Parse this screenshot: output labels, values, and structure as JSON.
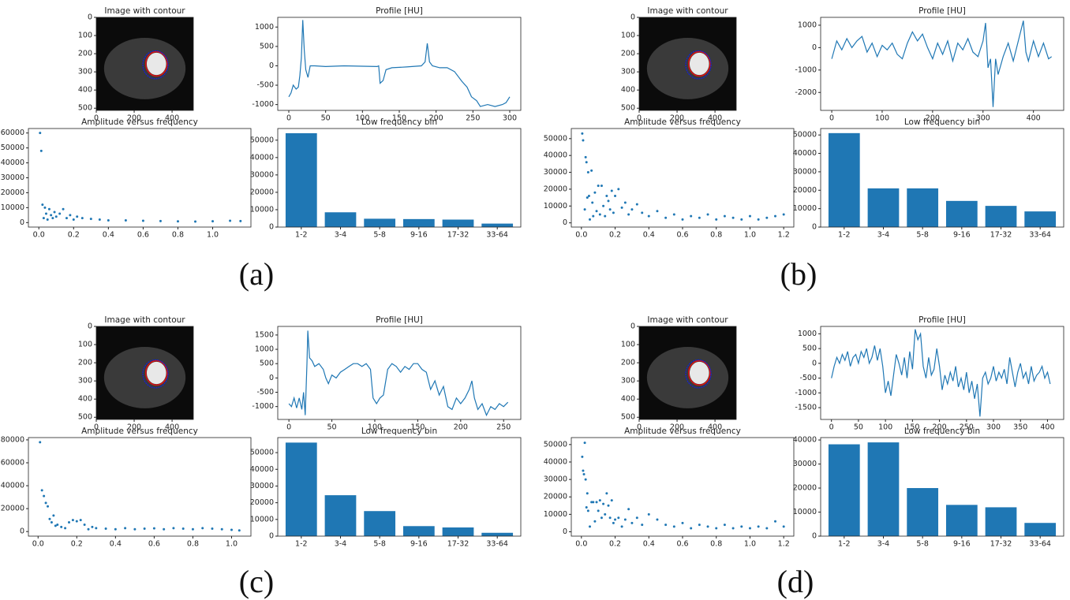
{
  "panel_labels": [
    "(a)",
    "(b)",
    "(c)",
    "(d)"
  ],
  "chart_data": [
    {
      "type": "image",
      "title": "Image with contour",
      "xlim": [
        0,
        512
      ],
      "ylim": [
        512,
        0
      ],
      "xticks": [
        0,
        200,
        400
      ],
      "yticks": [
        0,
        100,
        200,
        300,
        400,
        500
      ]
    },
    {
      "type": "line",
      "title": "Profile [HU]",
      "color": "#1f77b4",
      "xlim": [
        -15,
        315
      ],
      "ylim": [
        -1150,
        1250
      ],
      "xticks": [
        0,
        50,
        100,
        150,
        200,
        250,
        300
      ],
      "yticks": [
        -1000,
        -500,
        0,
        500,
        1000
      ],
      "x": [
        0,
        3,
        6,
        10,
        13,
        15,
        17,
        19,
        21,
        23,
        26,
        29,
        35,
        50,
        75,
        100,
        120,
        122,
        124,
        128,
        132,
        140,
        160,
        180,
        185,
        188,
        191,
        195,
        205,
        215,
        225,
        235,
        242,
        248,
        255,
        260,
        270,
        280,
        290,
        295,
        300
      ],
      "values": [
        -800,
        -700,
        -500,
        -600,
        -550,
        -250,
        200,
        1180,
        400,
        -100,
        -300,
        0,
        0,
        -20,
        0,
        -10,
        -20,
        0,
        -450,
        -380,
        -100,
        -50,
        -30,
        0,
        100,
        580,
        100,
        0,
        -50,
        -50,
        -150,
        -400,
        -550,
        -800,
        -900,
        -1050,
        -1000,
        -1050,
        -1000,
        -950,
        -800
      ]
    },
    {
      "type": "scatter",
      "title": "Amplitude versus frequency",
      "color": "#1f77b4",
      "xlim": [
        -0.06,
        1.22
      ],
      "ylim": [
        -3000,
        63000
      ],
      "xticks": [
        {
          "value": 0,
          "label": "0.0"
        },
        0.2,
        0.4,
        0.6,
        0.8,
        {
          "value": 1,
          "label": "1.0"
        }
      ],
      "yticks": [
        0,
        10000,
        20000,
        30000,
        40000,
        50000,
        60000
      ],
      "x": [
        0.007,
        0.014,
        0.021,
        0.028,
        0.035,
        0.042,
        0.05,
        0.06,
        0.07,
        0.08,
        0.09,
        0.1,
        0.12,
        0.14,
        0.16,
        0.18,
        0.2,
        0.22,
        0.25,
        0.3,
        0.35,
        0.4,
        0.5,
        0.6,
        0.7,
        0.8,
        0.9,
        1.0,
        1.1,
        1.16
      ],
      "values": [
        60000,
        48000,
        12000,
        3000,
        10000,
        6000,
        2000,
        9000,
        5000,
        3000,
        7000,
        4000,
        6000,
        9000,
        3000,
        5000,
        2000,
        4000,
        3000,
        2500,
        2000,
        1500,
        1500,
        1200,
        1000,
        800,
        700,
        900,
        1200,
        1000
      ]
    },
    {
      "type": "bar",
      "title": "Low frequency bin",
      "color": "#1f77b4",
      "categories": [
        "1-2",
        "3-4",
        "5-8",
        "9-16",
        "17-32",
        "33-64"
      ],
      "values": [
        54000,
        8500,
        4800,
        4600,
        4300,
        2000
      ],
      "ylim": [
        0,
        56700
      ],
      "yticks": [
        0,
        10000,
        20000,
        30000,
        40000,
        50000
      ]
    },
    {
      "type": "image",
      "title": "Image with contour",
      "xlim": [
        0,
        512
      ],
      "ylim": [
        512,
        0
      ],
      "xticks": [
        0,
        200,
        400
      ],
      "yticks": [
        0,
        100,
        200,
        300,
        400,
        500
      ]
    },
    {
      "type": "line",
      "title": "Profile [HU]",
      "color": "#1f77b4",
      "xlim": [
        -22,
        460
      ],
      "ylim": [
        -2800,
        1350
      ],
      "xticks": [
        0,
        100,
        200,
        300,
        400
      ],
      "yticks": [
        -2000,
        -1000,
        0,
        1000
      ],
      "x": [
        0,
        10,
        20,
        30,
        40,
        50,
        60,
        70,
        80,
        90,
        100,
        110,
        120,
        130,
        140,
        150,
        160,
        170,
        180,
        190,
        200,
        210,
        220,
        230,
        240,
        250,
        260,
        270,
        280,
        290,
        300,
        305,
        310,
        315,
        320,
        325,
        330,
        340,
        350,
        360,
        370,
        380,
        385,
        390,
        400,
        410,
        420,
        430,
        436
      ],
      "values": [
        -500,
        300,
        -100,
        400,
        0,
        300,
        500,
        -200,
        200,
        -400,
        100,
        -100,
        200,
        -300,
        -500,
        200,
        700,
        300,
        600,
        0,
        -500,
        200,
        -300,
        300,
        -600,
        200,
        -100,
        400,
        -200,
        -400,
        300,
        1100,
        -900,
        -500,
        -2650,
        -500,
        -1200,
        -400,
        200,
        -600,
        300,
        1200,
        -200,
        -600,
        300,
        -400,
        200,
        -500,
        -400
      ]
    },
    {
      "type": "scatter",
      "title": "Amplitude versus frequency",
      "color": "#1f77b4",
      "xlim": [
        -0.06,
        1.26
      ],
      "ylim": [
        -2500,
        56000
      ],
      "xticks": [
        {
          "value": 0,
          "label": "0.0"
        },
        0.2,
        0.4,
        0.6,
        0.8,
        {
          "value": 1,
          "label": "1.0"
        },
        1.2
      ],
      "yticks": [
        0,
        10000,
        20000,
        30000,
        40000,
        50000
      ],
      "x": [
        0.005,
        0.01,
        0.02,
        0.025,
        0.03,
        0.035,
        0.04,
        0.045,
        0.05,
        0.06,
        0.065,
        0.07,
        0.08,
        0.09,
        0.1,
        0.11,
        0.12,
        0.13,
        0.14,
        0.15,
        0.16,
        0.17,
        0.18,
        0.19,
        0.2,
        0.22,
        0.24,
        0.26,
        0.28,
        0.3,
        0.33,
        0.36,
        0.4,
        0.45,
        0.5,
        0.55,
        0.6,
        0.65,
        0.7,
        0.75,
        0.8,
        0.85,
        0.9,
        0.95,
        1.0,
        1.05,
        1.1,
        1.15,
        1.2
      ],
      "values": [
        53000,
        49000,
        8000,
        39000,
        36000,
        15000,
        30000,
        16000,
        2000,
        31000,
        12000,
        4000,
        18000,
        7000,
        22000,
        5000,
        22000,
        10000,
        4000,
        16000,
        13000,
        8000,
        19000,
        6000,
        16000,
        20000,
        9000,
        12000,
        5000,
        8000,
        11000,
        6000,
        4000,
        7000,
        3000,
        5000,
        2000,
        4000,
        3000,
        5000,
        2000,
        4000,
        3000,
        2000,
        4000,
        2000,
        3000,
        4000,
        5000
      ]
    },
    {
      "type": "bar",
      "title": "Low frequency bin",
      "color": "#1f77b4",
      "categories": [
        "1-2",
        "3-4",
        "5-8",
        "9-16",
        "17-32",
        "33-64"
      ],
      "values": [
        51000,
        21000,
        21000,
        14200,
        11500,
        8500
      ],
      "ylim": [
        0,
        53500
      ],
      "yticks": [
        0,
        10000,
        20000,
        30000,
        40000,
        50000
      ]
    },
    {
      "type": "image",
      "title": "Image with contour",
      "xlim": [
        0,
        512
      ],
      "ylim": [
        512,
        0
      ],
      "xticks": [
        0,
        200,
        400
      ],
      "yticks": [
        0,
        100,
        200,
        300,
        400,
        500
      ]
    },
    {
      "type": "line",
      "title": "Profile [HU]",
      "color": "#1f77b4",
      "xlim": [
        -13,
        270
      ],
      "ylim": [
        -1450,
        1800
      ],
      "xticks": [
        0,
        50,
        100,
        150,
        200,
        250
      ],
      "yticks": [
        -1000,
        -500,
        0,
        500,
        1000,
        1500
      ],
      "x": [
        0,
        3,
        6,
        9,
        12,
        15,
        17,
        19,
        21,
        22,
        24,
        27,
        30,
        35,
        40,
        43,
        46,
        50,
        55,
        60,
        65,
        70,
        75,
        80,
        85,
        90,
        95,
        98,
        102,
        106,
        110,
        115,
        120,
        125,
        130,
        135,
        140,
        145,
        150,
        155,
        160,
        165,
        170,
        175,
        180,
        185,
        190,
        195,
        200,
        205,
        210,
        213,
        216,
        220,
        225,
        230,
        235,
        240,
        245,
        250,
        255
      ],
      "values": [
        -900,
        -1000,
        -700,
        -1050,
        -700,
        -1100,
        -500,
        -1300,
        500,
        1650,
        700,
        600,
        400,
        500,
        300,
        0,
        -200,
        100,
        0,
        200,
        300,
        400,
        500,
        500,
        400,
        500,
        300,
        -700,
        -900,
        -700,
        -600,
        300,
        500,
        400,
        200,
        400,
        300,
        500,
        500,
        300,
        200,
        -400,
        -100,
        -600,
        -300,
        -1000,
        -1100,
        -700,
        -900,
        -700,
        -400,
        -100,
        -700,
        -1100,
        -900,
        -1300,
        -1000,
        -1100,
        -900,
        -1000,
        -850
      ]
    },
    {
      "type": "scatter",
      "title": "Amplitude versus frequency",
      "color": "#1f77b4",
      "xlim": [
        -0.05,
        1.1
      ],
      "ylim": [
        -4000,
        82000
      ],
      "xticks": [
        {
          "value": 0,
          "label": "0.0"
        },
        0.2,
        0.4,
        0.6,
        0.8,
        {
          "value": 1,
          "label": "1.0"
        }
      ],
      "yticks": [
        0,
        20000,
        40000,
        60000,
        80000
      ],
      "x": [
        0.01,
        0.02,
        0.03,
        0.04,
        0.05,
        0.06,
        0.07,
        0.08,
        0.09,
        0.1,
        0.12,
        0.14,
        0.16,
        0.18,
        0.2,
        0.22,
        0.24,
        0.26,
        0.28,
        0.3,
        0.35,
        0.4,
        0.45,
        0.5,
        0.55,
        0.6,
        0.65,
        0.7,
        0.75,
        0.8,
        0.85,
        0.9,
        0.95,
        1.0,
        1.04
      ],
      "values": [
        78000,
        36000,
        31000,
        25000,
        22000,
        11000,
        8000,
        14000,
        5000,
        6000,
        4000,
        3000,
        8000,
        10000,
        9000,
        10000,
        6000,
        2000,
        4000,
        3000,
        2500,
        2000,
        3000,
        2000,
        2500,
        2800,
        2000,
        3000,
        2500,
        2000,
        3000,
        2500,
        2000,
        1500,
        1000
      ]
    },
    {
      "type": "bar",
      "title": "Low frequency bin",
      "color": "#1f77b4",
      "categories": [
        "1-2",
        "3-4",
        "5-8",
        "9-16",
        "17-32",
        "33-64"
      ],
      "values": [
        56000,
        24500,
        15000,
        6000,
        5200,
        2000
      ],
      "ylim": [
        0,
        59000
      ],
      "yticks": [
        0,
        10000,
        20000,
        30000,
        40000,
        50000
      ]
    },
    {
      "type": "image",
      "title": "Image with contour",
      "xlim": [
        0,
        512
      ],
      "ylim": [
        512,
        0
      ],
      "xticks": [
        0,
        200,
        400
      ],
      "yticks": [
        0,
        100,
        200,
        300,
        400,
        500
      ]
    },
    {
      "type": "line",
      "title": "Profile [HU]",
      "color": "#1f77b4",
      "xlim": [
        -20,
        430
      ],
      "ylim": [
        -1900,
        1250
      ],
      "xticks": [
        0,
        50,
        100,
        150,
        200,
        250,
        300,
        350,
        400
      ],
      "yticks": [
        -1500,
        -1000,
        -500,
        0,
        500,
        1000
      ],
      "x": [
        0,
        5,
        10,
        15,
        20,
        25,
        30,
        35,
        40,
        45,
        50,
        55,
        60,
        65,
        70,
        75,
        80,
        85,
        90,
        95,
        100,
        105,
        110,
        115,
        120,
        125,
        130,
        135,
        140,
        145,
        150,
        155,
        160,
        165,
        170,
        175,
        180,
        185,
        190,
        195,
        200,
        205,
        210,
        215,
        220,
        225,
        230,
        235,
        240,
        245,
        250,
        255,
        260,
        265,
        270,
        275,
        280,
        285,
        290,
        295,
        300,
        305,
        310,
        315,
        320,
        325,
        330,
        335,
        340,
        345,
        350,
        355,
        360,
        365,
        370,
        375,
        380,
        385,
        390,
        395,
        400,
        405
      ],
      "values": [
        -500,
        -100,
        200,
        0,
        300,
        100,
        400,
        -100,
        200,
        300,
        0,
        400,
        200,
        500,
        0,
        200,
        600,
        100,
        500,
        -100,
        -1000,
        -600,
        -1100,
        -400,
        300,
        0,
        -400,
        200,
        -500,
        400,
        -200,
        1150,
        800,
        1000,
        -100,
        -500,
        200,
        -400,
        -200,
        500,
        -100,
        -900,
        -400,
        -700,
        -300,
        -600,
        -100,
        -800,
        -500,
        -900,
        -300,
        -1000,
        -600,
        -1200,
        -700,
        -1800,
        -500,
        -300,
        -700,
        -500,
        -100,
        -600,
        -300,
        -500,
        -200,
        -700,
        200,
        -300,
        -800,
        -300,
        0,
        -500,
        -300,
        -700,
        -100,
        -600,
        -400,
        -300,
        -100,
        -500,
        -300,
        -700
      ]
    },
    {
      "type": "scatter",
      "title": "Amplitude versus frequency",
      "color": "#1f77b4",
      "xlim": [
        -0.06,
        1.26
      ],
      "ylim": [
        -2500,
        54000
      ],
      "xticks": [
        {
          "value": 0,
          "label": "0.0"
        },
        0.2,
        0.4,
        0.6,
        0.8,
        {
          "value": 1,
          "label": "1.0"
        },
        1.2
      ],
      "yticks": [
        0,
        10000,
        20000,
        30000,
        40000,
        50000
      ],
      "x": [
        0.005,
        0.01,
        0.015,
        0.02,
        0.025,
        0.03,
        0.035,
        0.04,
        0.05,
        0.06,
        0.07,
        0.08,
        0.09,
        0.1,
        0.11,
        0.12,
        0.13,
        0.14,
        0.15,
        0.16,
        0.17,
        0.18,
        0.19,
        0.2,
        0.22,
        0.24,
        0.26,
        0.28,
        0.3,
        0.33,
        0.36,
        0.4,
        0.45,
        0.5,
        0.55,
        0.6,
        0.65,
        0.7,
        0.75,
        0.8,
        0.85,
        0.9,
        0.95,
        1.0,
        1.05,
        1.1,
        1.15,
        1.2
      ],
      "values": [
        43000,
        35000,
        33000,
        51000,
        30000,
        14000,
        22000,
        12000,
        3000,
        17000,
        17000,
        6000,
        17000,
        12000,
        18000,
        8000,
        16000,
        10000,
        22000,
        15000,
        8000,
        18000,
        5000,
        7000,
        8000,
        3000,
        7000,
        13000,
        5000,
        8000,
        4000,
        10000,
        7000,
        4000,
        3000,
        5000,
        2000,
        4000,
        3000,
        2000,
        4000,
        2000,
        3000,
        2000,
        3000,
        2000,
        6000,
        3000
      ]
    },
    {
      "type": "bar",
      "title": "Low frequency bin",
      "color": "#1f77b4",
      "categories": [
        "1-2",
        "3-4",
        "5-8",
        "9-16",
        "17-32",
        "33-64"
      ],
      "values": [
        38200,
        39000,
        20000,
        13000,
        12000,
        5500
      ],
      "ylim": [
        0,
        41000
      ],
      "yticks": [
        0,
        10000,
        20000,
        30000,
        40000
      ]
    }
  ]
}
